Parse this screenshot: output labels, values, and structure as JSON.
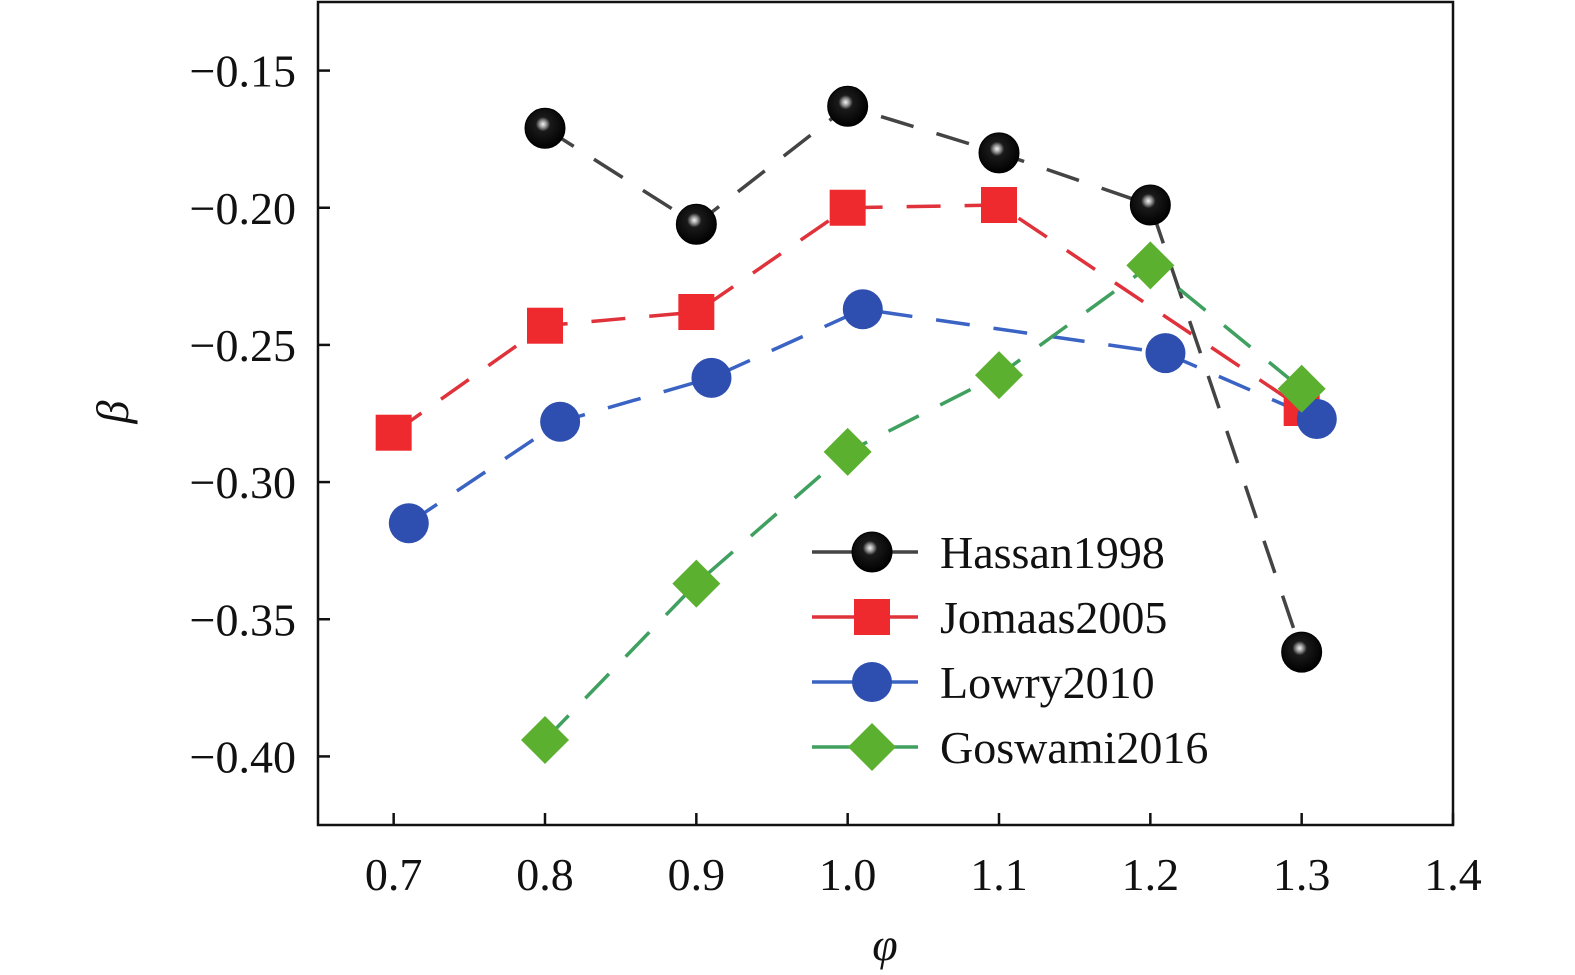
{
  "chart_data": {
    "type": "line",
    "xlabel": "φ",
    "ylabel": "β",
    "xlim": [
      0.65,
      1.4
    ],
    "ylim": [
      -0.425,
      -0.125
    ],
    "x_ticks": [
      0.7,
      0.8,
      0.9,
      1.0,
      1.1,
      1.2,
      1.3,
      1.4
    ],
    "x_tick_labels": [
      "0.7",
      "0.8",
      "0.9",
      "1.0",
      "1.1",
      "1.2",
      "1.3",
      "1.4"
    ],
    "y_ticks": [
      -0.15,
      -0.2,
      -0.25,
      -0.3,
      -0.35,
      -0.4
    ],
    "y_tick_labels": [
      "−0.15",
      "−0.20",
      "−0.25",
      "−0.30",
      "−0.35",
      "−0.40"
    ],
    "grid": false,
    "legend_position": "bottom-right",
    "series": [
      {
        "name": "Hassan1998",
        "color": "#111111",
        "line_color": "#444444",
        "marker": "sphere",
        "x": [
          0.8,
          0.9,
          1.0,
          1.1,
          1.2,
          1.3
        ],
        "y": [
          -0.171,
          -0.206,
          -0.163,
          -0.18,
          -0.199,
          -0.362
        ]
      },
      {
        "name": "Jomaas2005",
        "color": "#ee2a2e",
        "line_color": "#e0323a",
        "marker": "square",
        "x": [
          0.7,
          0.8,
          0.9,
          1.0,
          1.1,
          1.3
        ],
        "y": [
          -0.282,
          -0.243,
          -0.238,
          -0.2,
          -0.199,
          -0.273
        ]
      },
      {
        "name": "Lowry2010",
        "color": "#2e4fb0",
        "line_color": "#3a63c4",
        "marker": "circle",
        "x": [
          0.71,
          0.81,
          0.91,
          1.01,
          1.21,
          1.31
        ],
        "y": [
          -0.315,
          -0.278,
          -0.262,
          -0.237,
          -0.253,
          -0.277
        ]
      },
      {
        "name": "Goswami2016",
        "color": "#5cb030",
        "line_color": "#3fa060",
        "marker": "diamond",
        "x": [
          0.8,
          0.9,
          1.0,
          1.1,
          1.2,
          1.3
        ],
        "y": [
          -0.394,
          -0.337,
          -0.289,
          -0.261,
          -0.221,
          -0.266
        ]
      }
    ]
  }
}
